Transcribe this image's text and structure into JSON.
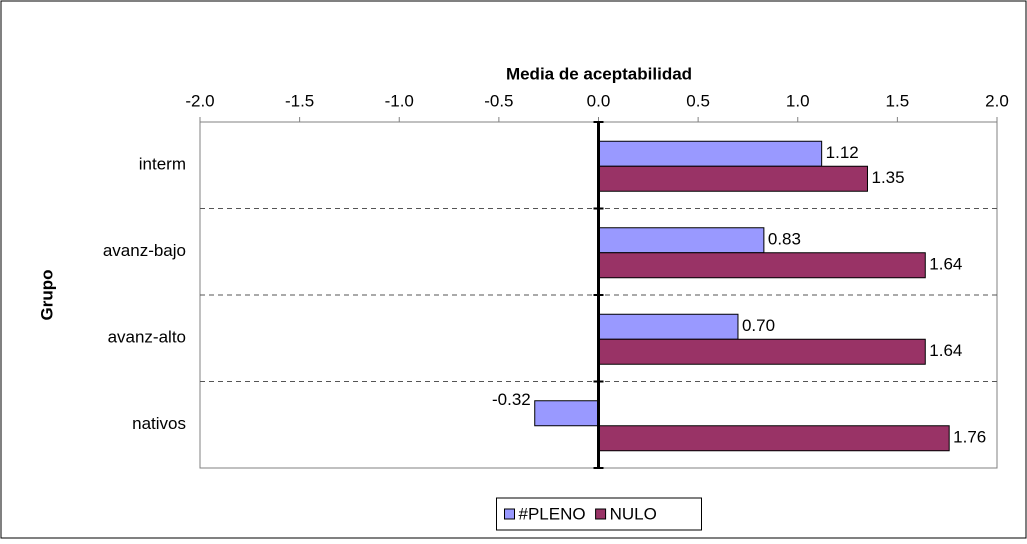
{
  "chart_data": {
    "type": "hbar",
    "title": "Media de aceptabilidad",
    "ylabel": "Grupo",
    "categories": [
      "interm",
      "avanz-bajo",
      "avanz-alto",
      "nativos"
    ],
    "series": [
      {
        "name": "#PLENO",
        "color": "#9999ff",
        "values": [
          1.12,
          0.83,
          0.7,
          -0.32
        ],
        "value_labels": [
          "1.12",
          "0.83",
          "0.70",
          "-0.32"
        ]
      },
      {
        "name": "NULO",
        "color": "#993366",
        "values": [
          1.35,
          1.64,
          1.64,
          1.76
        ],
        "value_labels": [
          "1.35",
          "1.64",
          "1.64",
          "1.76"
        ]
      }
    ],
    "xlim": [
      -2,
      2
    ],
    "xticks": [
      {
        "value": -2,
        "label": "-2.0"
      },
      {
        "value": -1.5,
        "label": "-1.5"
      },
      {
        "value": -1,
        "label": "-1.0"
      },
      {
        "value": -0.5,
        "label": "-0.5"
      },
      {
        "value": 0,
        "label": "0.0"
      },
      {
        "value": 0.5,
        "label": "0.5"
      },
      {
        "value": 1,
        "label": "1.0"
      },
      {
        "value": 1.5,
        "label": "1.5"
      },
      {
        "value": 2,
        "label": "2.0"
      }
    ],
    "legend": "bottom"
  }
}
